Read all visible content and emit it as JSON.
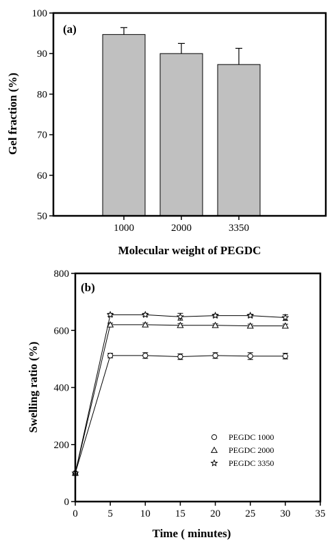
{
  "chart_data": [
    {
      "type": "bar",
      "panel_label": "(a)",
      "title": "",
      "xlabel": "Molecular weight of PEGDC",
      "ylabel": "Gel fraction (%)",
      "categories": [
        "1000",
        "2000",
        "3350"
      ],
      "values": [
        94.7,
        90.0,
        87.3
      ],
      "errors": [
        1.7,
        2.5,
        4.0
      ],
      "ylim": [
        50,
        100
      ],
      "yticks": [
        50,
        60,
        70,
        80,
        90,
        100
      ],
      "bar_color": "#c0c0c0",
      "grid": false
    },
    {
      "type": "line",
      "panel_label": "(b)",
      "title": "",
      "xlabel": "Time ( minutes)",
      "ylabel": "Swelling ratio (%)",
      "xlim": [
        0,
        35
      ],
      "ylim": [
        0,
        800
      ],
      "xticks": [
        0,
        5,
        10,
        15,
        20,
        25,
        30,
        35
      ],
      "yticks": [
        0,
        200,
        400,
        600,
        800
      ],
      "legend_position": "bottom-right",
      "grid": false,
      "x": [
        0,
        5,
        10,
        15,
        20,
        25,
        30
      ],
      "series": [
        {
          "name": "PEGDC 1000",
          "marker": "circle",
          "values": [
            100,
            512,
            512,
            508,
            512,
            510,
            510
          ],
          "errors": [
            0,
            8,
            10,
            10,
            10,
            12,
            10
          ]
        },
        {
          "name": "PEGDC 2000",
          "marker": "triangle",
          "values": [
            100,
            620,
            620,
            618,
            618,
            616,
            616
          ],
          "errors": [
            0,
            6,
            6,
            6,
            5,
            6,
            6
          ]
        },
        {
          "name": "PEGDC 3350",
          "marker": "star",
          "values": [
            100,
            655,
            655,
            648,
            652,
            652,
            645
          ],
          "errors": [
            0,
            5,
            5,
            12,
            5,
            5,
            10
          ]
        }
      ]
    }
  ]
}
